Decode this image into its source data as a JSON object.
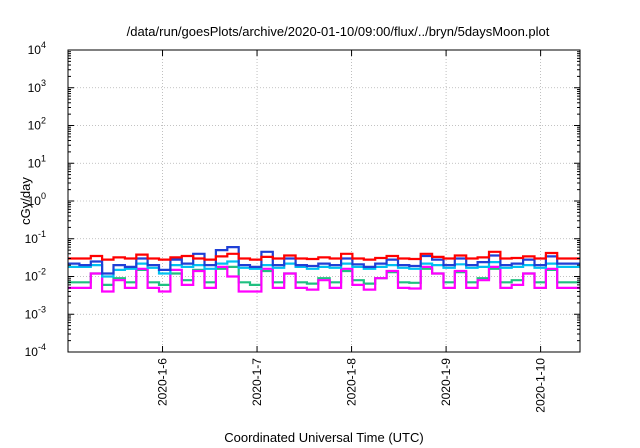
{
  "chart_data": {
    "type": "line",
    "title": "/data/run/goesPlots/archive/2020-01-10/09:00/flux/../bryn/5daysMoon.plot",
    "xlabel": "Coordinated Universal Time (UTC)",
    "ylabel": "cGy/day",
    "yscale": "log",
    "ylim": [
      0.0001,
      10000
    ],
    "y_ticks": [
      {
        "base": "10",
        "exp": "-4"
      },
      {
        "base": "10",
        "exp": "-3"
      },
      {
        "base": "10",
        "exp": "-2"
      },
      {
        "base": "10",
        "exp": "-1"
      },
      {
        "base": "10",
        "exp": "0"
      },
      {
        "base": "10",
        "exp": "1"
      },
      {
        "base": "10",
        "exp": "2"
      },
      {
        "base": "10",
        "exp": "3"
      },
      {
        "base": "10",
        "exp": "4"
      }
    ],
    "xlim": [
      "2020-01-05T00:00",
      "2020-01-10T10:00"
    ],
    "x_ticks": [
      "2020-1-6",
      "2020-1-7",
      "2020-1-8",
      "2020-1-9",
      "2020-1-10"
    ],
    "x_tick_dates": [
      "2020-01-06",
      "2020-01-07",
      "2020-01-08",
      "2020-01-09",
      "2020-01-10"
    ],
    "grid": true,
    "series": [
      {
        "color": "#ff0000",
        "values": [
          0.03,
          0.03,
          0.035,
          0.028,
          0.032,
          0.03,
          0.038,
          0.03,
          0.028,
          0.032,
          0.035,
          0.03,
          0.028,
          0.034,
          0.04,
          0.03,
          0.028,
          0.033,
          0.03,
          0.036,
          0.03,
          0.029,
          0.032,
          0.03,
          0.04,
          0.03,
          0.028,
          0.031,
          0.035,
          0.03,
          0.029,
          0.04,
          0.033,
          0.03,
          0.036,
          0.03,
          0.032,
          0.045,
          0.03,
          0.031,
          0.034,
          0.03,
          0.042,
          0.03,
          0.03
        ]
      },
      {
        "color": "#1f3fd6",
        "values": [
          0.022,
          0.02,
          0.025,
          0.012,
          0.02,
          0.018,
          0.03,
          0.02,
          0.015,
          0.028,
          0.022,
          0.04,
          0.02,
          0.05,
          0.06,
          0.02,
          0.018,
          0.045,
          0.02,
          0.03,
          0.02,
          0.019,
          0.022,
          0.02,
          0.03,
          0.021,
          0.018,
          0.022,
          0.028,
          0.02,
          0.019,
          0.035,
          0.028,
          0.02,
          0.03,
          0.02,
          0.024,
          0.036,
          0.02,
          0.022,
          0.028,
          0.02,
          0.034,
          0.022,
          0.022
        ]
      },
      {
        "color": "#00c0f0",
        "values": [
          0.018,
          0.018,
          0.02,
          0.01,
          0.015,
          0.016,
          0.022,
          0.017,
          0.012,
          0.02,
          0.018,
          0.02,
          0.016,
          0.022,
          0.025,
          0.017,
          0.016,
          0.02,
          0.017,
          0.022,
          0.018,
          0.016,
          0.018,
          0.017,
          0.022,
          0.018,
          0.016,
          0.018,
          0.02,
          0.017,
          0.016,
          0.022,
          0.02,
          0.017,
          0.021,
          0.017,
          0.018,
          0.024,
          0.017,
          0.018,
          0.02,
          0.017,
          0.022,
          0.018,
          0.018
        ]
      },
      {
        "color": "#20c080",
        "values": [
          0.007,
          0.007,
          0.012,
          0.006,
          0.009,
          0.007,
          0.015,
          0.007,
          0.006,
          0.012,
          0.008,
          0.015,
          0.007,
          0.016,
          0.018,
          0.007,
          0.006,
          0.014,
          0.007,
          0.012,
          0.007,
          0.0065,
          0.009,
          0.007,
          0.014,
          0.008,
          0.0065,
          0.009,
          0.013,
          0.007,
          0.0068,
          0.016,
          0.012,
          0.007,
          0.013,
          0.007,
          0.009,
          0.016,
          0.007,
          0.008,
          0.012,
          0.007,
          0.015,
          0.007,
          0.007
        ]
      },
      {
        "color": "#ff00ff",
        "values": [
          0.005,
          0.005,
          0.012,
          0.004,
          0.008,
          0.005,
          0.016,
          0.005,
          0.004,
          0.015,
          0.006,
          0.014,
          0.005,
          0.018,
          0.01,
          0.004,
          0.004,
          0.016,
          0.005,
          0.012,
          0.005,
          0.0045,
          0.008,
          0.005,
          0.016,
          0.006,
          0.0045,
          0.009,
          0.014,
          0.005,
          0.0048,
          0.018,
          0.012,
          0.005,
          0.014,
          0.005,
          0.008,
          0.018,
          0.005,
          0.006,
          0.012,
          0.005,
          0.016,
          0.005,
          0.005
        ]
      }
    ]
  }
}
